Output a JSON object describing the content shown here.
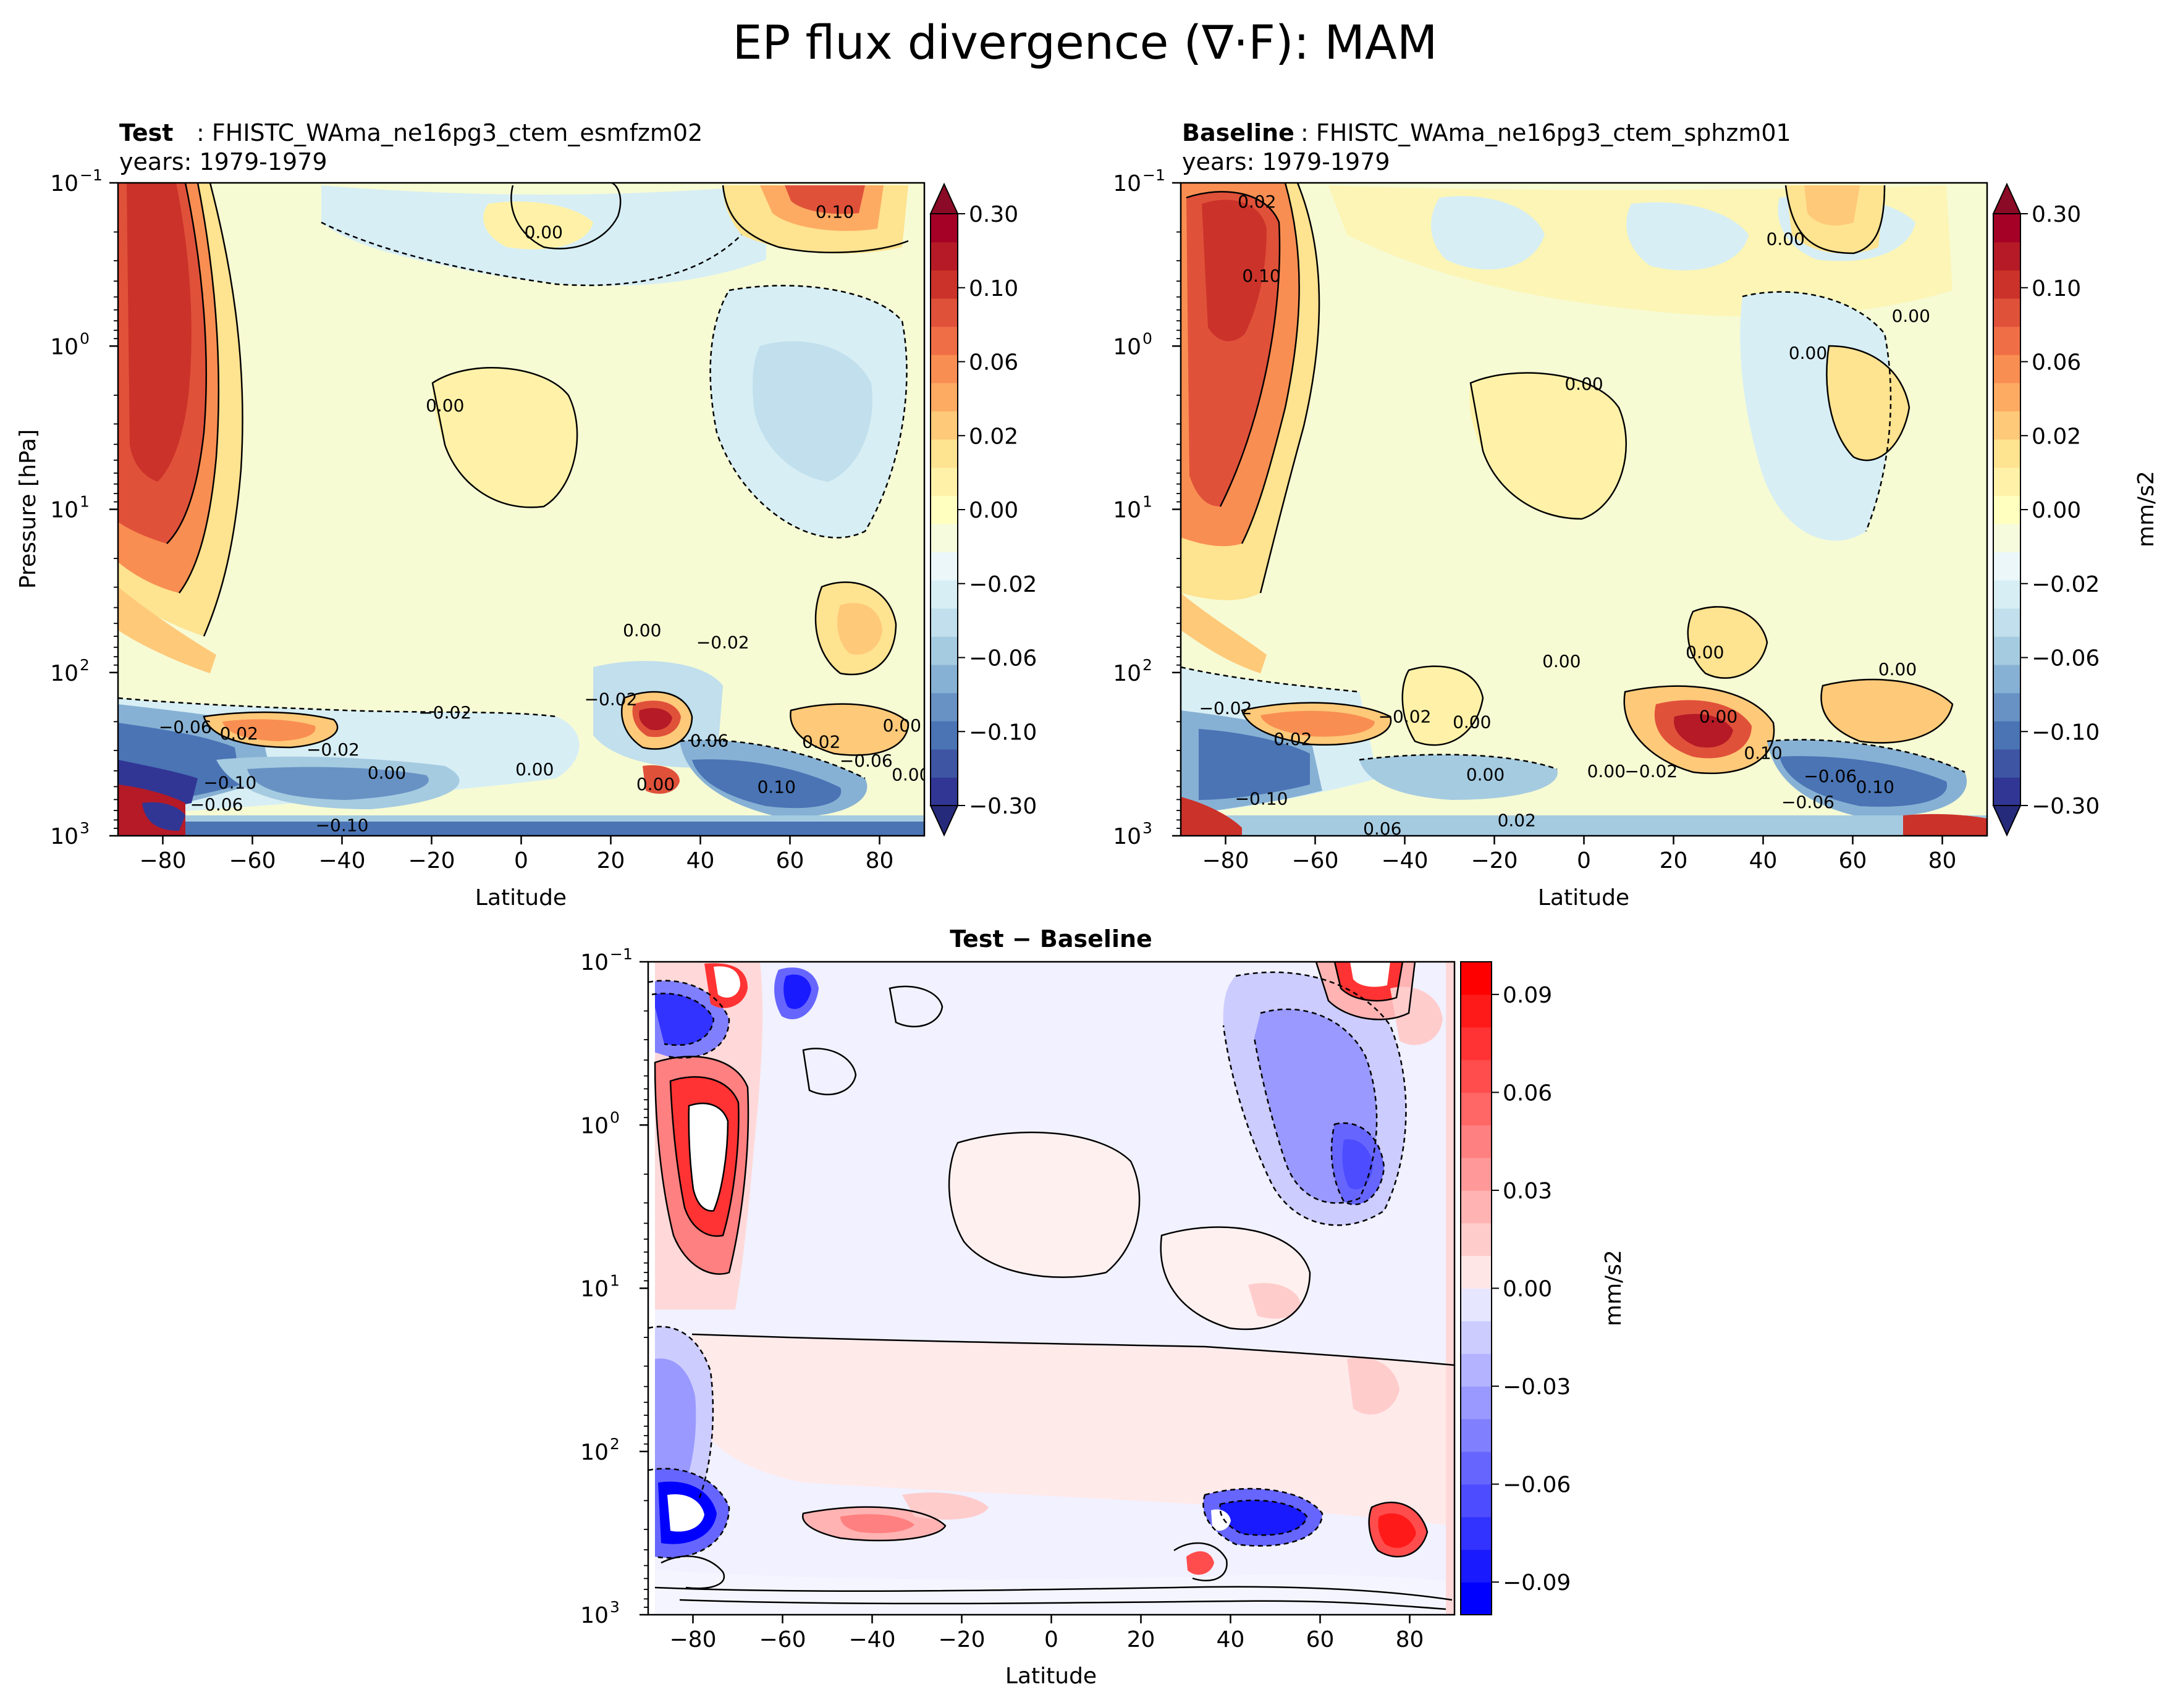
{
  "figure": {
    "title": "EP flux divergence (∇·F): MAM"
  },
  "chart_data": [
    {
      "type": "heatmap",
      "panel": "test",
      "title_bold": "Test",
      "title_rest": ": FHISTC_WAma_ne16pg3_ctem_esmfzm02",
      "subtitle": "years: 1979-1979",
      "xlabel": "Latitude",
      "ylabel": "Pressure [hPa]",
      "xlim": [
        -90,
        90
      ],
      "ylim": [
        1000,
        0.1
      ],
      "yscale": "log",
      "x_ticks": [
        "−80",
        "−60",
        "−40",
        "−20",
        "0",
        "20",
        "40",
        "60",
        "80"
      ],
      "x_tick_values": [
        -80,
        -60,
        -40,
        -20,
        0,
        20,
        40,
        60,
        80
      ],
      "y_ticks": [
        "10",
        "10",
        "10",
        "10",
        "10"
      ],
      "y_tick_exponents": [
        "−1",
        "0",
        "1",
        "2",
        "3"
      ],
      "y_tick_values": [
        0.1,
        1,
        10,
        100,
        1000
      ],
      "contour_labels": [
        {
          "text": "0.00",
          "lat": 5,
          "p": 0.2
        },
        {
          "text": "0.10",
          "lat": 70,
          "p": 0.15
        },
        {
          "text": "0.00",
          "lat": -17,
          "p": 2.3
        },
        {
          "text": "0.00",
          "lat": 27,
          "p": 55
        },
        {
          "text": "−0.02",
          "lat": 45,
          "p": 65
        },
        {
          "text": "−0.02",
          "lat": -17,
          "p": 175
        },
        {
          "text": "−0.02",
          "lat": 20,
          "p": 145
        },
        {
          "text": "0.02",
          "lat": -63,
          "p": 235
        },
        {
          "text": "−0.02",
          "lat": -42,
          "p": 295
        },
        {
          "text": "−0.06",
          "lat": -75,
          "p": 215
        },
        {
          "text": "0.00",
          "lat": -30,
          "p": 410
        },
        {
          "text": "0.00",
          "lat": 3,
          "p": 390
        },
        {
          "text": "0.02",
          "lat": 67,
          "p": 265
        },
        {
          "text": "0.00",
          "lat": 85,
          "p": 210
        },
        {
          "text": "0.00",
          "lat": 87,
          "p": 420
        },
        {
          "text": "−0.06",
          "lat": 77,
          "p": 345
        },
        {
          "text": "0.00",
          "lat": 30,
          "p": 480
        },
        {
          "text": "−0.10",
          "lat": -65,
          "p": 470
        },
        {
          "text": "0.10",
          "lat": 57,
          "p": 500
        },
        {
          "text": "0.06",
          "lat": 42,
          "p": 260
        },
        {
          "text": "−0.10",
          "lat": -40,
          "p": 860
        },
        {
          "text": "−0.06",
          "lat": -68,
          "p": 640
        }
      ],
      "colorbar": {
        "label": "",
        "ticks": [
          "0.30",
          "0.10",
          "0.06",
          "0.02",
          "0.00",
          "−0.02",
          "−0.06",
          "−0.10",
          "−0.30"
        ],
        "levels": [
          -0.3,
          -0.2,
          -0.15,
          -0.1,
          -0.08,
          -0.06,
          -0.04,
          -0.03,
          -0.02,
          -0.01,
          0.0,
          0.01,
          0.02,
          0.03,
          0.04,
          0.06,
          0.08,
          0.1,
          0.15,
          0.2,
          0.3
        ],
        "colors": [
          "#313695",
          "#3e55a3",
          "#4a74b4",
          "#6892c4",
          "#87b1d4",
          "#a5cbe1",
          "#c1dfec",
          "#d7eef5",
          "#ecf7fa",
          "#f5fbdc",
          "#ffffbf",
          "#fff2a8",
          "#fee390",
          "#fec979",
          "#fdab62",
          "#f98e52",
          "#ef6e45",
          "#e0513a",
          "#cb3229",
          "#b51a26",
          "#a50026"
        ]
      }
    },
    {
      "type": "heatmap",
      "panel": "baseline",
      "title_bold": "Baseline",
      "title_rest": ": FHISTC_WAma_ne16pg3_ctem_sphzm01",
      "subtitle": "years: 1979-1979",
      "xlabel": "Latitude",
      "ylabel": "",
      "xlim": [
        -90,
        90
      ],
      "ylim": [
        1000,
        0.1
      ],
      "yscale": "log",
      "x_ticks": [
        "−80",
        "−60",
        "−40",
        "−20",
        "0",
        "20",
        "40",
        "60",
        "80"
      ],
      "x_tick_values": [
        -80,
        -60,
        -40,
        -20,
        0,
        20,
        40,
        60,
        80
      ],
      "y_ticks": [
        "10",
        "10",
        "10",
        "10",
        "10"
      ],
      "y_tick_exponents": [
        "−1",
        "0",
        "1",
        "2",
        "3"
      ],
      "y_tick_values": [
        0.1,
        1,
        10,
        100,
        1000
      ],
      "contour_labels": [
        {
          "text": "0.02",
          "lat": -73,
          "p": 0.13
        },
        {
          "text": "0.10",
          "lat": -72,
          "p": 0.37
        },
        {
          "text": "0.00",
          "lat": 45,
          "p": 0.22
        },
        {
          "text": "0.00",
          "lat": 73,
          "p": 0.65
        },
        {
          "text": "0.00",
          "lat": 50,
          "p": 1.1
        },
        {
          "text": "0.00",
          "lat": 0,
          "p": 1.7
        },
        {
          "text": "0.00",
          "lat": 27,
          "p": 75
        },
        {
          "text": "0.00",
          "lat": -5,
          "p": 85
        },
        {
          "text": "0.00",
          "lat": 30,
          "p": 185
        },
        {
          "text": "0.00",
          "lat": 70,
          "p": 95
        },
        {
          "text": "−0.02",
          "lat": -80,
          "p": 165
        },
        {
          "text": "−0.02",
          "lat": -40,
          "p": 185
        },
        {
          "text": "0.00",
          "lat": -25,
          "p": 200
        },
        {
          "text": "0.02",
          "lat": -65,
          "p": 255
        },
        {
          "text": "0.10",
          "lat": 40,
          "p": 310
        },
        {
          "text": "−0.02",
          "lat": 15,
          "p": 400
        },
        {
          "text": "0.00",
          "lat": 5,
          "p": 400
        },
        {
          "text": "0.00",
          "lat": -22,
          "p": 420
        },
        {
          "text": "−0.06",
          "lat": 55,
          "p": 430
        },
        {
          "text": "0.10",
          "lat": 65,
          "p": 500
        },
        {
          "text": "−0.06",
          "lat": 50,
          "p": 620
        },
        {
          "text": "−0.10",
          "lat": -72,
          "p": 590
        },
        {
          "text": "0.02",
          "lat": -15,
          "p": 800
        },
        {
          "text": "0.06",
          "lat": -45,
          "p": 900
        }
      ],
      "colorbar": {
        "label": "mm/s2",
        "ticks": [
          "0.30",
          "0.10",
          "0.06",
          "0.02",
          "0.00",
          "−0.02",
          "−0.06",
          "−0.10",
          "−0.30"
        ],
        "levels": [
          -0.3,
          -0.2,
          -0.15,
          -0.1,
          -0.08,
          -0.06,
          -0.04,
          -0.03,
          -0.02,
          -0.01,
          0.0,
          0.01,
          0.02,
          0.03,
          0.04,
          0.06,
          0.08,
          0.1,
          0.15,
          0.2,
          0.3
        ],
        "colors": [
          "#313695",
          "#3e55a3",
          "#4a74b4",
          "#6892c4",
          "#87b1d4",
          "#a5cbe1",
          "#c1dfec",
          "#d7eef5",
          "#ecf7fa",
          "#f5fbdc",
          "#ffffbf",
          "#fff2a8",
          "#fee390",
          "#fec979",
          "#fdab62",
          "#f98e52",
          "#ef6e45",
          "#e0513a",
          "#cb3229",
          "#b51a26",
          "#a50026"
        ]
      }
    },
    {
      "type": "heatmap",
      "panel": "difference",
      "title_bold": "Test − Baseline",
      "title_rest": "",
      "subtitle": "",
      "xlabel": "Latitude",
      "ylabel": "",
      "xlim": [
        -90,
        90
      ],
      "ylim": [
        1000,
        0.1
      ],
      "yscale": "log",
      "x_ticks": [
        "−80",
        "−60",
        "−40",
        "−20",
        "0",
        "20",
        "40",
        "60",
        "80"
      ],
      "x_tick_values": [
        -80,
        -60,
        -40,
        -20,
        0,
        20,
        40,
        60,
        80
      ],
      "y_ticks": [
        "10",
        "10",
        "10",
        "10",
        "10"
      ],
      "y_tick_exponents": [
        "−1",
        "0",
        "1",
        "2",
        "3"
      ],
      "y_tick_values": [
        0.1,
        1,
        10,
        100,
        1000
      ],
      "contour_labels": [],
      "colorbar": {
        "label": "mm/s2",
        "ticks": [
          "0.09",
          "0.06",
          "0.03",
          "0.00",
          "−0.03",
          "−0.06",
          "−0.09"
        ],
        "tick_values": [
          0.09,
          0.06,
          0.03,
          0.0,
          -0.03,
          -0.06,
          -0.09
        ],
        "levels": [
          -0.1,
          -0.09,
          -0.08,
          -0.07,
          -0.06,
          -0.05,
          -0.04,
          -0.03,
          -0.02,
          -0.01,
          0.0,
          0.01,
          0.02,
          0.03,
          0.04,
          0.05,
          0.06,
          0.07,
          0.08,
          0.09,
          0.1
        ],
        "colors": [
          "#0000ff",
          "#1a1aff",
          "#3333ff",
          "#4d4dff",
          "#6666ff",
          "#8080ff",
          "#9999ff",
          "#b3b3ff",
          "#ccccff",
          "#e6e6ff",
          "#ffe6e6",
          "#ffcccc",
          "#ffb3b3",
          "#ff9999",
          "#ff8080",
          "#ff6666",
          "#ff4d4d",
          "#ff3333",
          "#ff1a1a",
          "#ff0000"
        ]
      }
    }
  ]
}
